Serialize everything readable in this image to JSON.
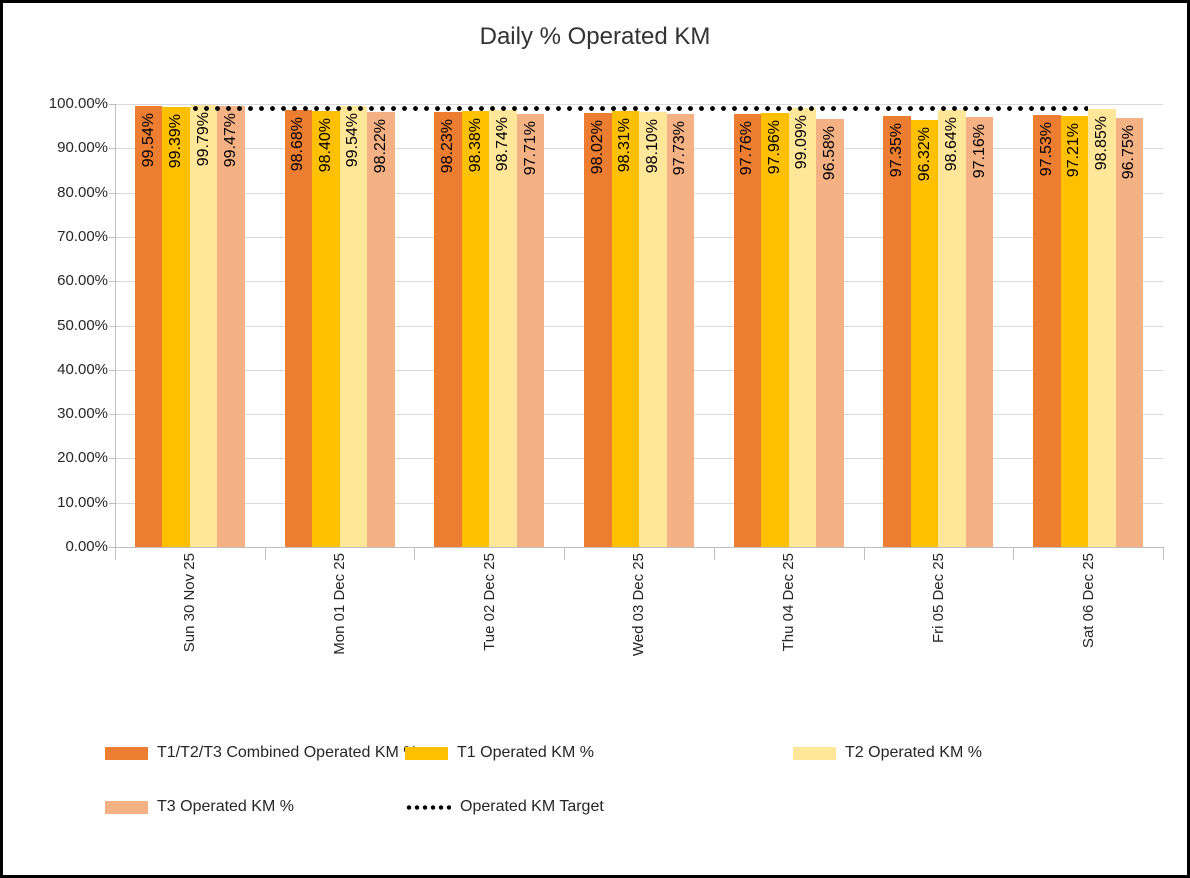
{
  "chart_data": {
    "type": "bar",
    "title": "Daily % Operated KM",
    "categories": [
      "Sun 30 Nov 25",
      "Mon 01 Dec 25",
      "Tue 02 Dec 25",
      "Wed 03 Dec 25",
      "Thu 04 Dec 25",
      "Fri 05 Dec 25",
      "Sat 06 Dec 25"
    ],
    "series": [
      {
        "name": "T1/T2/T3 Combined Operated KM %",
        "color": "#ED7D31",
        "values": [
          99.54,
          98.68,
          98.23,
          98.02,
          97.76,
          97.35,
          97.53
        ]
      },
      {
        "name": "T1 Operated KM %",
        "color": "#FFC000",
        "values": [
          99.39,
          98.4,
          98.38,
          98.31,
          97.96,
          96.32,
          97.21
        ]
      },
      {
        "name": "T2 Operated KM %",
        "color": "#FFE699",
        "values": [
          99.79,
          99.54,
          98.74,
          98.1,
          99.09,
          98.64,
          98.85
        ]
      },
      {
        "name": "T3 Operated KM %",
        "color": "#F4B183",
        "values": [
          99.47,
          98.22,
          97.71,
          97.73,
          96.58,
          97.16,
          96.75
        ]
      }
    ],
    "target_line": {
      "name": "Operated KM Target",
      "value": 99.0,
      "style": "dotted",
      "color": "#000000"
    },
    "ylim": [
      0,
      100
    ],
    "y_tick_step": 10,
    "y_tick_labels": [
      "0.00%",
      "10.00%",
      "20.00%",
      "30.00%",
      "40.00%",
      "50.00%",
      "60.00%",
      "70.00%",
      "80.00%",
      "90.00%",
      "100.00%"
    ],
    "data_label_suffix": "%",
    "grid": true,
    "legend_position": "bottom",
    "colors": {
      "gridline": "#D9D9D9",
      "axis": "#BFBFBF",
      "text": "#262626",
      "data_label": "#000000"
    }
  }
}
